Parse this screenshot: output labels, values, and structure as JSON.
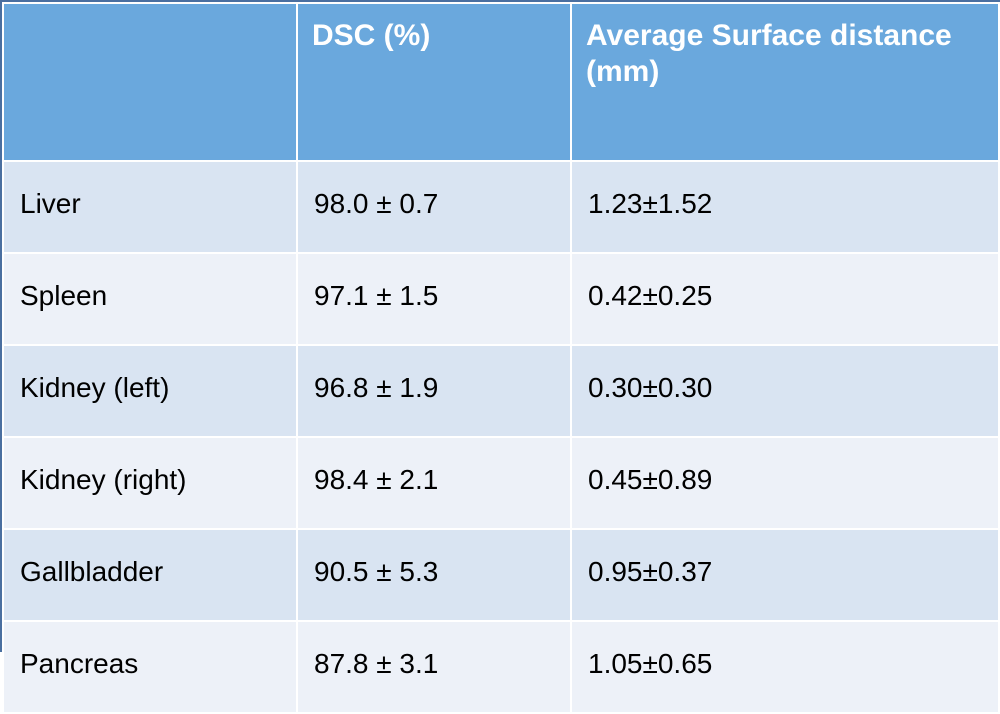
{
  "table": {
    "headers": [
      "",
      "DSC (%)",
      "Average Surface distance (mm)"
    ],
    "rows": [
      {
        "organ": "Liver",
        "dsc": "98.0 ± 0.7",
        "asd": "1.23±1.52"
      },
      {
        "organ": "Spleen",
        "dsc": "97.1 ± 1.5",
        "asd": "0.42±0.25"
      },
      {
        "organ": "Kidney (left)",
        "dsc": "96.8 ± 1.9",
        "asd": "0.30±0.30"
      },
      {
        "organ": "Kidney (right)",
        "dsc": "98.4 ± 2.1",
        "asd": "0.45±0.89"
      },
      {
        "organ": "Gallbladder",
        "dsc": "90.5 ± 5.3",
        "asd": "0.95±0.37"
      },
      {
        "organ": "Pancreas",
        "dsc": "87.8 ± 3.1",
        "asd": "1.05±0.65"
      }
    ]
  },
  "colors": {
    "header_bg": "#6aa8dd",
    "row_odd_bg": "#d9e4f2",
    "row_even_bg": "#edf1f8",
    "border": "#ffffff"
  }
}
